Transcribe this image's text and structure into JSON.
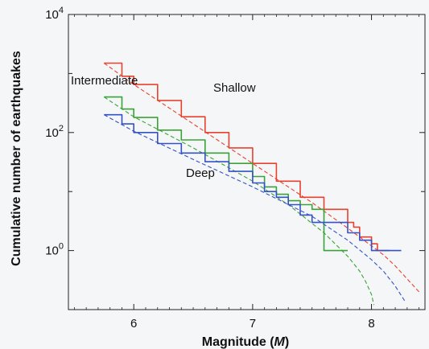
{
  "chart_data": {
    "type": "line",
    "xlabel": "Magnitude (",
    "xlabel_symbol": "M",
    "xlabel_close": ")",
    "ylabel": "Cumulative number of earthquakes",
    "xlim": [
      5.45,
      8.45
    ],
    "ylim": [
      0.1,
      10000
    ],
    "y_scale": "log",
    "x_ticks": [
      6,
      7,
      8
    ],
    "x_tick_labels": [
      "6",
      "7",
      "8"
    ],
    "y_ticks": [
      1,
      100,
      10000
    ],
    "y_tick_bases": [
      "10",
      "10",
      "10"
    ],
    "y_tick_exps": [
      "0",
      "2",
      "4"
    ],
    "grid": false,
    "series": [
      {
        "name": "Shallow",
        "color": "#e8412e",
        "x": [
          5.75,
          5.9,
          6.0,
          6.2,
          6.4,
          6.6,
          6.8,
          7.0,
          7.2,
          7.4,
          7.6,
          7.8,
          7.85,
          7.9,
          7.95,
          8.0,
          8.05,
          8.1,
          8.15
        ],
        "values": [
          1500,
          900,
          650,
          350,
          185,
          100,
          55,
          30,
          15,
          8,
          5,
          3,
          2.5,
          1.7,
          1.7,
          1.3,
          1.0,
          1.0,
          1.0
        ],
        "fit_x": [
          5.75,
          6.0,
          6.5,
          7.0,
          7.5,
          7.8,
          8.0,
          8.1,
          8.2,
          8.3,
          8.4
        ],
        "fit_values": [
          1500,
          650,
          140,
          30,
          6.5,
          2.4,
          1.2,
          0.85,
          0.55,
          0.33,
          0.2
        ]
      },
      {
        "name": "Intermediate",
        "color": "#3aa335",
        "x": [
          5.75,
          5.9,
          6.0,
          6.2,
          6.4,
          6.6,
          6.8,
          7.0,
          7.1,
          7.2,
          7.3,
          7.4,
          7.5,
          7.6,
          7.6,
          7.8
        ],
        "values": [
          400,
          250,
          180,
          110,
          75,
          45,
          30,
          18,
          12,
          9,
          7,
          6,
          5,
          3,
          1,
          1
        ],
        "fit_x": [
          5.75,
          6.0,
          6.5,
          7.0,
          7.3,
          7.6,
          7.8,
          7.9,
          7.95,
          8.0,
          8.02
        ],
        "fit_values": [
          400,
          185,
          55,
          15,
          6,
          2,
          0.8,
          0.45,
          0.3,
          0.18,
          0.12
        ]
      },
      {
        "name": "Deep",
        "color": "#3452c8",
        "x": [
          5.75,
          5.9,
          6.0,
          6.2,
          6.4,
          6.6,
          6.8,
          7.0,
          7.1,
          7.2,
          7.3,
          7.4,
          7.5,
          7.6,
          7.8,
          7.9,
          8.0,
          8.25
        ],
        "values": [
          200,
          140,
          100,
          65,
          45,
          32,
          22,
          14,
          10,
          8,
          6,
          4,
          3,
          3,
          2,
          1.5,
          1,
          1
        ],
        "fit_x": [
          5.75,
          6.0,
          6.5,
          7.0,
          7.5,
          7.8,
          8.0,
          8.1,
          8.2,
          8.28
        ],
        "fit_values": [
          200,
          105,
          35,
          12,
          3.8,
          1.5,
          0.7,
          0.45,
          0.25,
          0.14
        ]
      }
    ]
  }
}
